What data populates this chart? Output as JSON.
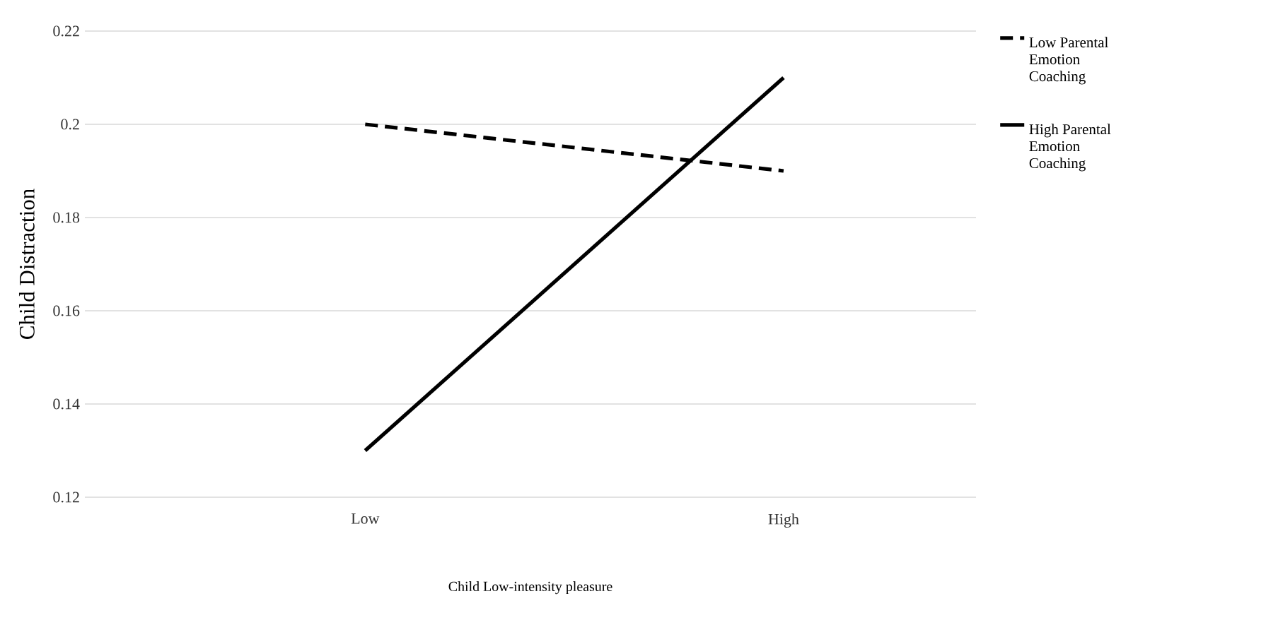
{
  "chart_data": {
    "type": "line",
    "xlabel": "Child Low-intensity pleasure",
    "ylabel": "Child Distraction",
    "categories": [
      "Low",
      "High"
    ],
    "series": [
      {
        "name": "Low Parental Emotion Coaching",
        "color": "#000000",
        "line_style": "dashed",
        "values": [
          0.2,
          0.19
        ]
      },
      {
        "name": "High Parental Emotion Coaching",
        "color": "#000000",
        "line_style": "solid",
        "values": [
          0.13,
          0.21
        ]
      }
    ],
    "ylim": [
      0.12,
      0.22
    ],
    "yticks": [
      0.12,
      0.14,
      0.16,
      0.18,
      0.2,
      0.22
    ],
    "grid": "y",
    "legend": "right",
    "marker": "none"
  }
}
